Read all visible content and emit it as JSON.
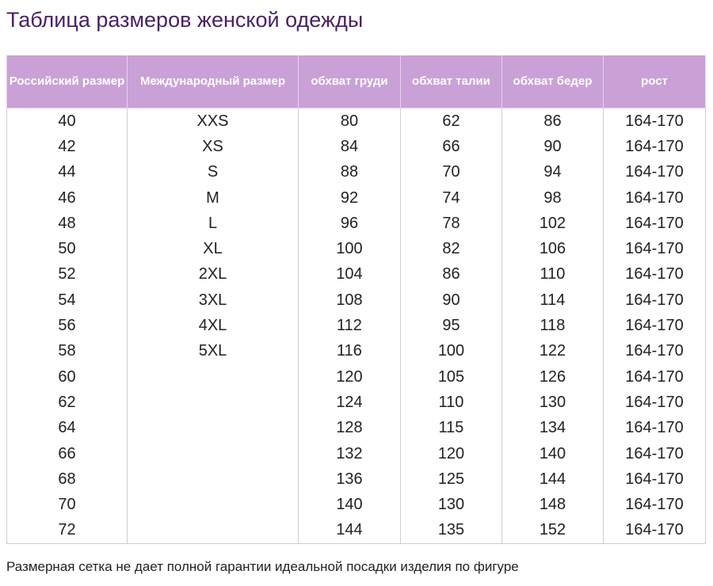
{
  "title": "Таблица размеров женской одежды",
  "colors": {
    "header_bg": "#c9a1d6",
    "title": "#4a2168"
  },
  "headers": [
    "Российский размер",
    "Международный размер",
    "обхват груди",
    "обхват талии",
    "обхват бедер",
    "рост"
  ],
  "rows": [
    [
      "40",
      "XXS",
      "80",
      "62",
      "86",
      "164-170"
    ],
    [
      "42",
      "XS",
      "84",
      "66",
      "90",
      "164-170"
    ],
    [
      "44",
      "S",
      "88",
      "70",
      "94",
      "164-170"
    ],
    [
      "46",
      "M",
      "92",
      "74",
      "98",
      "164-170"
    ],
    [
      "48",
      "L",
      "96",
      "78",
      "102",
      "164-170"
    ],
    [
      "50",
      "XL",
      "100",
      "82",
      "106",
      "164-170"
    ],
    [
      "52",
      "2XL",
      "104",
      "86",
      "110",
      "164-170"
    ],
    [
      "54",
      "3XL",
      "108",
      "90",
      "114",
      "164-170"
    ],
    [
      "56",
      "4XL",
      "112",
      "95",
      "118",
      "164-170"
    ],
    [
      "58",
      "5XL",
      "116",
      "100",
      "122",
      "164-170"
    ],
    [
      "60",
      "",
      "120",
      "105",
      "126",
      "164-170"
    ],
    [
      "62",
      "",
      "124",
      "110",
      "130",
      "164-170"
    ],
    [
      "64",
      "",
      "128",
      "115",
      "134",
      "164-170"
    ],
    [
      "66",
      "",
      "132",
      "120",
      "140",
      "164-170"
    ],
    [
      "68",
      "",
      "136",
      "125",
      "144",
      "164-170"
    ],
    [
      "70",
      "",
      "140",
      "130",
      "148",
      "164-170"
    ],
    [
      "72",
      "",
      "144",
      "135",
      "152",
      "164-170"
    ]
  ],
  "note": "Размерная сетка не дает полной гарантии идеальной посадки изделия по фигуре"
}
